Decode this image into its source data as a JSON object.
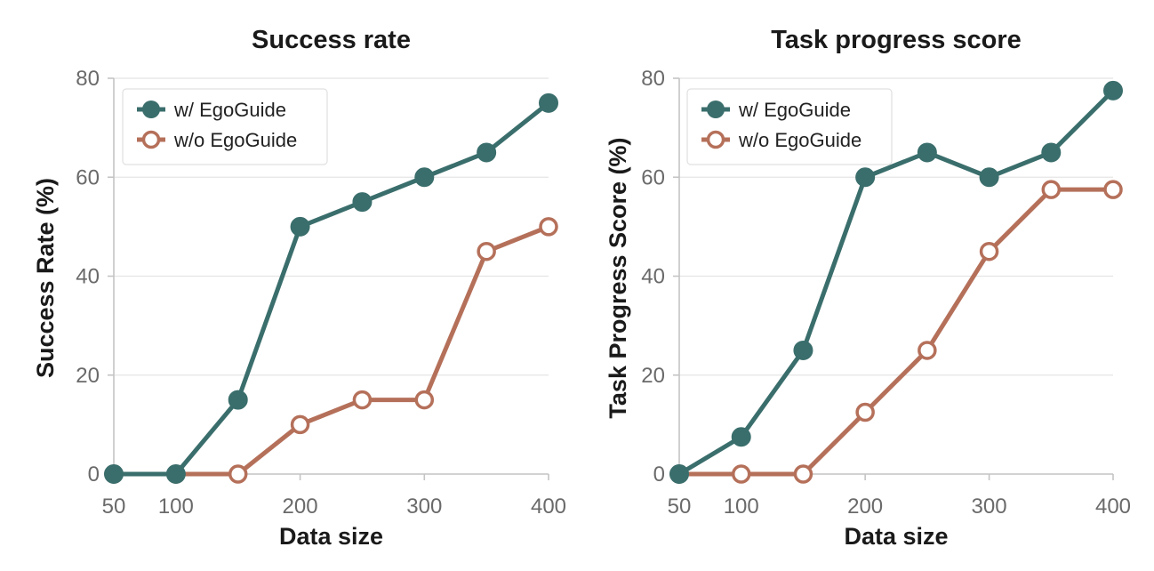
{
  "chart_data": [
    {
      "type": "line",
      "title": "Success rate",
      "xlabel": "Data size",
      "ylabel": "Success Rate (%)",
      "x": [
        50,
        100,
        150,
        200,
        250,
        300,
        350,
        400
      ],
      "xticks": [
        50,
        100,
        200,
        300,
        400
      ],
      "yticks": [
        0,
        20,
        40,
        60,
        80
      ],
      "xlim": [
        50,
        400
      ],
      "ylim": [
        0,
        80
      ],
      "grid": "horizontal",
      "legend_position": "top-left",
      "series": [
        {
          "name": "w/ EgoGuide",
          "values": [
            0,
            0,
            15,
            50,
            55,
            60,
            65,
            75
          ],
          "color": "#3a6e6c",
          "marker": "filled-circle"
        },
        {
          "name": "w/o EgoGuide",
          "values": [
            0,
            0,
            0,
            10,
            15,
            15,
            45,
            50
          ],
          "color": "#b5705a",
          "marker": "hollow-circle"
        }
      ]
    },
    {
      "type": "line",
      "title": "Task progress score",
      "xlabel": "Data size",
      "ylabel": "Task Progress Score (%)",
      "x": [
        50,
        100,
        150,
        200,
        250,
        300,
        350,
        400
      ],
      "xticks": [
        50,
        100,
        200,
        300,
        400
      ],
      "yticks": [
        0,
        20,
        40,
        60,
        80
      ],
      "xlim": [
        50,
        400
      ],
      "ylim": [
        0,
        80
      ],
      "grid": "horizontal",
      "legend_position": "top-left",
      "series": [
        {
          "name": "w/ EgoGuide",
          "values": [
            0,
            7.5,
            25,
            60,
            65,
            60,
            65,
            77.5
          ],
          "color": "#3a6e6c",
          "marker": "filled-circle"
        },
        {
          "name": "w/o EgoGuide",
          "values": [
            0,
            0,
            0,
            12.5,
            25,
            45,
            57.5,
            57.5
          ],
          "color": "#b5705a",
          "marker": "hollow-circle"
        }
      ]
    }
  ]
}
